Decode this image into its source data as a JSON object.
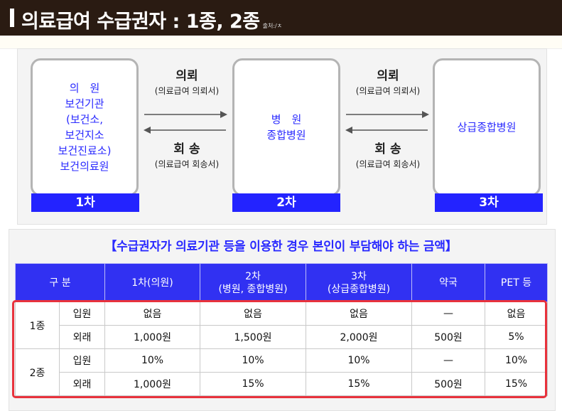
{
  "header": {
    "title": "의료급여 수급권자 : 1종, 2종",
    "source": "출처:/ㅊ"
  },
  "flow": {
    "box1_lines": [
      "의　원",
      "보건기관",
      "(보건소,",
      "보건지소",
      "보건진료소)",
      "보건의료원"
    ],
    "box2_lines": [
      "병　원",
      "종합병원"
    ],
    "box3_lines": [
      "상급종합병원"
    ],
    "levels": [
      "1차",
      "2차",
      "3차"
    ],
    "referral": {
      "label": "의뢰",
      "doc": "(의료급여 의뢰서)"
    },
    "return": {
      "label": "회 송",
      "doc": "(의료급여 회송서)"
    }
  },
  "table": {
    "subtitle": "【수급권자가 의료기관 등을 이용한 경우 본인이 부담해야 하는 금액】",
    "headers": {
      "category": "구 분",
      "clinic": "1차(의원)",
      "hospital_line1": "2차",
      "hospital_line2": "(병원, 종합병원)",
      "tertiary_line1": "3차",
      "tertiary_line2": "(상급종합병원)",
      "pharmacy": "약국",
      "pet": "PET 등"
    },
    "groups": [
      {
        "name": "1종",
        "rows": [
          {
            "type": "입원",
            "values": [
              "없음",
              "없음",
              "없음",
              "—",
              "없음"
            ]
          },
          {
            "type": "외래",
            "values": [
              "1,000원",
              "1,500원",
              "2,000원",
              "500원",
              "5%"
            ]
          }
        ]
      },
      {
        "name": "2종",
        "rows": [
          {
            "type": "입원",
            "values": [
              "10%",
              "10%",
              "10%",
              "—",
              "10%"
            ]
          },
          {
            "type": "외래",
            "values": [
              "1,000원",
              "15%",
              "15%",
              "500원",
              "15%"
            ]
          }
        ]
      }
    ]
  },
  "colors": {
    "header_bg": "#2a1b12",
    "accent_blue": "#2323ff",
    "table_header": "#3131f2",
    "highlight_red": "#e8323c"
  }
}
